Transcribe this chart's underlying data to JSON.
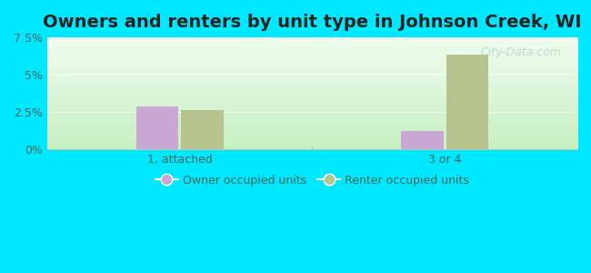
{
  "title": "Owners and renters by unit type in Johnson Creek, WI",
  "categories": [
    "1, attached",
    "3 or 4"
  ],
  "owner_values": [
    2.85,
    1.25
  ],
  "renter_values": [
    2.65,
    6.35
  ],
  "owner_color": "#c9a8d4",
  "renter_color": "#b8c490",
  "bg_top_color": "#f0faf0",
  "bg_bottom_color": "#c8eec0",
  "outer_background": "#00e8ff",
  "ylim": [
    0,
    7.5
  ],
  "yticks": [
    0,
    2.5,
    5.0,
    7.5
  ],
  "ytick_labels": [
    "0%",
    "2.5%",
    "5%",
    "7.5%"
  ],
  "title_fontsize": 14,
  "axis_label_color": "#446655",
  "legend_owner": "Owner occupied units",
  "legend_renter": "Renter occupied units",
  "bar_width": 0.08,
  "watermark": "City-Data.com"
}
